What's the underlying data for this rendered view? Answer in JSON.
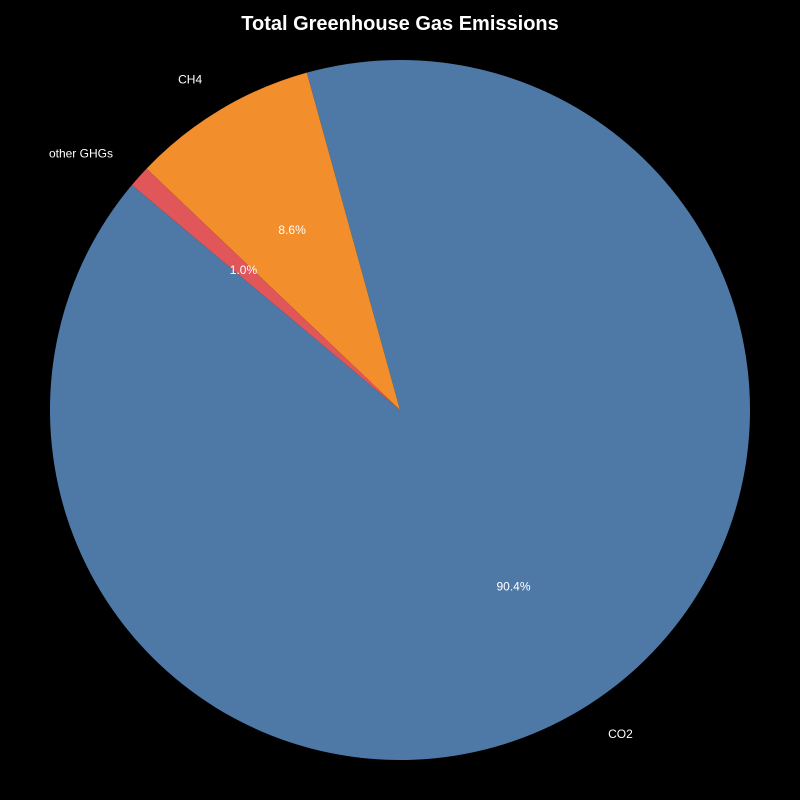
{
  "chart_data": {
    "type": "pie",
    "title": "Total Greenhouse Gas Emissions",
    "slices": [
      {
        "label": "CO2",
        "value": 90.4,
        "pct_label": "90.4%",
        "color": "#4e79a7"
      },
      {
        "label": "CH4",
        "value": 8.6,
        "pct_label": "8.6%",
        "color": "#f28e2b"
      },
      {
        "label": "other GHGs",
        "value": 1.0,
        "pct_label": "1.0%",
        "color": "#e15759"
      }
    ],
    "start_angle_deg": 140,
    "direction": "counterclockwise",
    "background": "#000000",
    "text_color": "#ffffff"
  }
}
